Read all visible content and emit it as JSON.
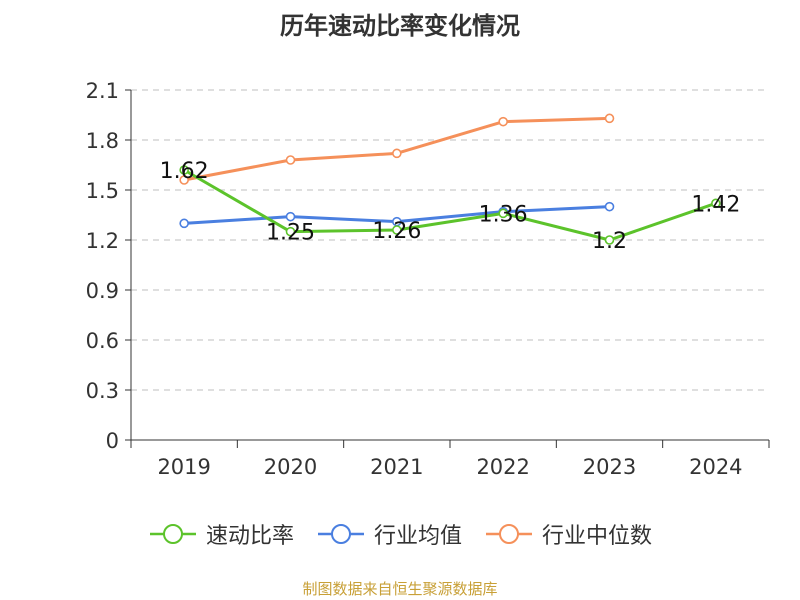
{
  "chart_data": {
    "type": "line",
    "title": "历年速动比率变化情况",
    "categories": [
      "2019",
      "2020",
      "2021",
      "2022",
      "2023",
      "2024"
    ],
    "ylim": [
      0,
      2.1
    ],
    "yticks": [
      "0",
      "0.3",
      "0.6",
      "0.9",
      "1.2",
      "1.5",
      "1.8",
      "2.1"
    ],
    "grid": true,
    "legend_position": "bottom",
    "series": [
      {
        "name": "速动比率",
        "color": "#5cc32b",
        "values": [
          1.62,
          1.25,
          1.26,
          1.36,
          1.2,
          1.42
        ],
        "labels": [
          "1.62",
          "1.25",
          "1.26",
          "1.36",
          "1.2",
          "1.42"
        ]
      },
      {
        "name": "行业均值",
        "color": "#4a7fe0",
        "values": [
          1.3,
          1.34,
          1.31,
          1.37,
          1.4,
          null
        ]
      },
      {
        "name": "行业中位数",
        "color": "#f5905a",
        "values": [
          1.56,
          1.68,
          1.72,
          1.91,
          1.93,
          null
        ]
      }
    ]
  },
  "source_text": "制图数据来自恒生聚源数据库"
}
